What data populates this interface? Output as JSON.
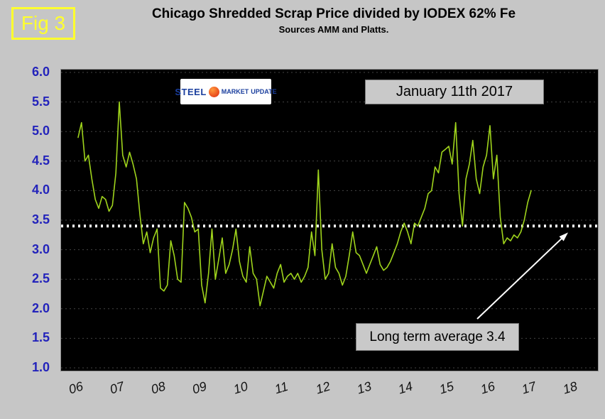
{
  "figure_label": "Fig 3",
  "title": "Chicago Shredded Scrap Price divided by IODEX 62% Fe",
  "subtitle": "Sources AMM and Platts.",
  "logo": {
    "steel": "STEEL",
    "market": "MARKET",
    "update": "UPDATE"
  },
  "annotations": {
    "date_label": "January 11th 2017",
    "average_label": "Long term average 3.4"
  },
  "colors": {
    "background": "#c6c6c6",
    "plot_background": "#000000",
    "line": "#9fd41c",
    "average_line": "#ffffff",
    "y_axis_labels": "#2323bb",
    "figure_accent": "#ffff2e"
  },
  "chart_data": {
    "type": "line",
    "title": "Chicago Shredded Scrap Price divided by IODEX 62% Fe",
    "sources": "AMM and Platts",
    "xlabel": "",
    "ylabel": "",
    "ylim": [
      1.0,
      6.0
    ],
    "y_ticks": [
      6.0,
      5.5,
      5.0,
      4.5,
      4.0,
      3.5,
      3.0,
      2.5,
      2.0,
      1.5,
      1.0
    ],
    "y_tick_labels": [
      "6.0",
      "5.5",
      "5.0",
      "4.5",
      "4.0",
      "3.5",
      "3.0",
      "2.5",
      "2.0",
      "1.5",
      "1.0"
    ],
    "x_tick_labels": [
      "06",
      "07",
      "08",
      "09",
      "10",
      "11",
      "12",
      "13",
      "14",
      "15",
      "16",
      "17",
      "18"
    ],
    "grid": "horizontal-dashed",
    "long_term_average": 3.4,
    "series": [
      {
        "name": "Chicago Shredded Scrap / IODEX 62% Fe ratio",
        "start_year": 2006,
        "frequency": "monthly",
        "values": [
          4.9,
          5.15,
          4.5,
          4.6,
          4.2,
          3.85,
          3.7,
          3.9,
          3.85,
          3.65,
          3.75,
          4.3,
          5.5,
          4.6,
          4.4,
          4.65,
          4.45,
          4.2,
          3.6,
          3.1,
          3.3,
          2.95,
          3.2,
          3.35,
          2.35,
          2.3,
          2.4,
          3.15,
          2.9,
          2.5,
          2.45,
          3.8,
          3.7,
          3.55,
          3.3,
          3.35,
          2.4,
          2.1,
          2.6,
          3.35,
          2.5,
          2.85,
          3.2,
          2.6,
          2.75,
          3.0,
          3.35,
          2.8,
          2.55,
          2.45,
          3.05,
          2.6,
          2.5,
          2.05,
          2.3,
          2.55,
          2.45,
          2.35,
          2.6,
          2.75,
          2.45,
          2.55,
          2.6,
          2.5,
          2.6,
          2.45,
          2.55,
          2.7,
          3.3,
          2.9,
          4.35,
          3.0,
          2.5,
          2.6,
          3.1,
          2.7,
          2.6,
          2.4,
          2.55,
          2.9,
          3.3,
          2.95,
          2.9,
          2.75,
          2.6,
          2.75,
          2.9,
          3.05,
          2.75,
          2.65,
          2.7,
          2.8,
          2.95,
          3.1,
          3.3,
          3.45,
          3.3,
          3.1,
          3.45,
          3.4,
          3.55,
          3.7,
          3.95,
          4.0,
          4.4,
          4.3,
          4.65,
          4.7,
          4.75,
          4.45,
          5.15,
          3.95,
          3.4,
          4.2,
          4.45,
          4.85,
          4.2,
          3.95,
          4.4,
          4.6,
          5.1,
          4.2,
          4.6,
          3.55,
          3.1,
          3.2,
          3.15,
          3.25,
          3.2,
          3.3,
          3.5,
          3.8,
          4.0
        ]
      }
    ],
    "legend": "none",
    "annotations": [
      {
        "text": "January 11th 2017",
        "position": "top-right-inside"
      },
      {
        "text": "Long term average 3.4",
        "position": "bottom-right-inside",
        "arrow_points_to_value": 3.4
      }
    ]
  }
}
